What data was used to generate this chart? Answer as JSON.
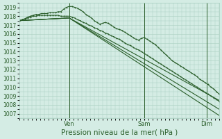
{
  "xlabel": "Pression niveau de la mer( hPa )",
  "bg_color": "#d4ece4",
  "grid_color": "#a8cfc0",
  "line_color": "#2a5e2a",
  "ylim": [
    1006.5,
    1019.5
  ],
  "yticks": [
    1007,
    1008,
    1009,
    1010,
    1011,
    1012,
    1013,
    1014,
    1015,
    1016,
    1017,
    1018,
    1019
  ],
  "xlim": [
    0,
    144
  ],
  "vline_x_positions": [
    36,
    90,
    135
  ],
  "vline_labels": [
    "Ven",
    "Sam",
    "Dim"
  ],
  "xlabel_fontsize": 7.5,
  "tick_fontsize": 5.5,
  "lines": [
    {
      "x": [
        0,
        36,
        144
      ],
      "y": [
        1017.5,
        1017.8,
        1006.8
      ],
      "marker": false,
      "lw": 0.8
    },
    {
      "x": [
        0,
        36,
        144
      ],
      "y": [
        1017.5,
        1017.8,
        1007.5
      ],
      "marker": false,
      "lw": 0.8
    },
    {
      "x": [
        0,
        36,
        144
      ],
      "y": [
        1017.5,
        1017.8,
        1008.5
      ],
      "marker": false,
      "lw": 0.8
    },
    {
      "x": [
        0,
        2,
        4,
        6,
        8,
        10,
        12,
        14,
        16,
        18,
        20,
        22,
        24,
        26,
        28,
        30,
        32,
        34,
        36,
        38,
        40,
        42,
        44,
        46,
        48,
        50,
        52,
        54,
        56,
        58,
        60,
        62,
        64,
        66,
        68,
        70,
        72,
        74,
        76,
        78,
        80,
        82,
        84,
        86,
        88,
        90,
        92,
        94,
        96,
        98,
        100,
        102,
        104,
        106,
        108,
        110,
        112,
        114,
        116,
        118,
        120,
        122,
        124,
        126,
        128,
        130,
        132,
        134,
        136,
        138,
        140,
        142,
        144
      ],
      "y": [
        1017.5,
        1017.6,
        1017.7,
        1017.9,
        1018.0,
        1018.1,
        1018.2,
        1018.2,
        1018.3,
        1018.3,
        1018.3,
        1018.4,
        1018.4,
        1018.4,
        1018.5,
        1018.5,
        1018.8,
        1019.0,
        1019.1,
        1019.1,
        1019.0,
        1018.9,
        1018.7,
        1018.5,
        1018.2,
        1018.0,
        1017.8,
        1017.5,
        1017.3,
        1017.1,
        1017.2,
        1017.3,
        1017.2,
        1017.0,
        1016.8,
        1016.6,
        1016.5,
        1016.4,
        1016.2,
        1016.0,
        1015.8,
        1015.6,
        1015.4,
        1015.3,
        1015.5,
        1015.6,
        1015.4,
        1015.2,
        1015.0,
        1014.8,
        1014.5,
        1014.2,
        1013.9,
        1013.6,
        1013.3,
        1013.0,
        1012.8,
        1012.6,
        1012.4,
        1012.2,
        1012.0,
        1011.8,
        1011.6,
        1011.4,
        1011.2,
        1010.9,
        1010.7,
        1010.5,
        1010.3,
        1010.0,
        1009.8,
        1009.5,
        1009.2
      ],
      "marker": true,
      "marker_size": 2.0,
      "lw": 0.8
    },
    {
      "x": [
        0,
        2,
        4,
        6,
        8,
        10,
        12,
        14,
        16,
        18,
        20,
        22,
        24,
        26,
        28,
        30,
        32,
        34,
        36,
        38,
        40,
        42,
        44,
        46,
        48,
        50,
        52,
        54,
        56,
        58,
        60,
        62,
        64,
        66,
        68,
        70,
        72,
        74,
        76,
        78,
        80,
        82,
        84,
        86,
        88,
        90,
        92,
        94,
        96,
        98,
        100,
        102,
        104,
        106,
        108,
        110,
        112,
        114,
        116,
        118,
        120,
        122,
        124,
        126,
        128,
        130,
        132,
        134,
        136,
        138,
        140,
        142,
        144
      ],
      "y": [
        1017.5,
        1017.6,
        1017.7,
        1017.8,
        1017.9,
        1018.0,
        1018.0,
        1018.1,
        1018.1,
        1018.1,
        1018.1,
        1018.1,
        1018.1,
        1018.1,
        1018.1,
        1018.0,
        1018.0,
        1018.0,
        1018.0,
        1017.9,
        1017.8,
        1017.6,
        1017.5,
        1017.3,
        1017.2,
        1017.0,
        1016.9,
        1016.7,
        1016.6,
        1016.4,
        1016.3,
        1016.1,
        1016.0,
        1015.8,
        1015.7,
        1015.5,
        1015.4,
        1015.2,
        1015.0,
        1014.8,
        1014.7,
        1014.5,
        1014.3,
        1014.2,
        1014.0,
        1013.8,
        1013.6,
        1013.4,
        1013.2,
        1013.0,
        1012.8,
        1012.6,
        1012.4,
        1012.2,
        1012.0,
        1011.8,
        1011.6,
        1011.4,
        1011.2,
        1011.0,
        1010.8,
        1010.6,
        1010.4,
        1010.2,
        1010.0,
        1009.8,
        1009.6,
        1009.4,
        1009.2,
        1009.0,
        1008.8,
        1008.6,
        1008.4
      ],
      "marker": true,
      "marker_size": 2.0,
      "lw": 0.8
    }
  ]
}
